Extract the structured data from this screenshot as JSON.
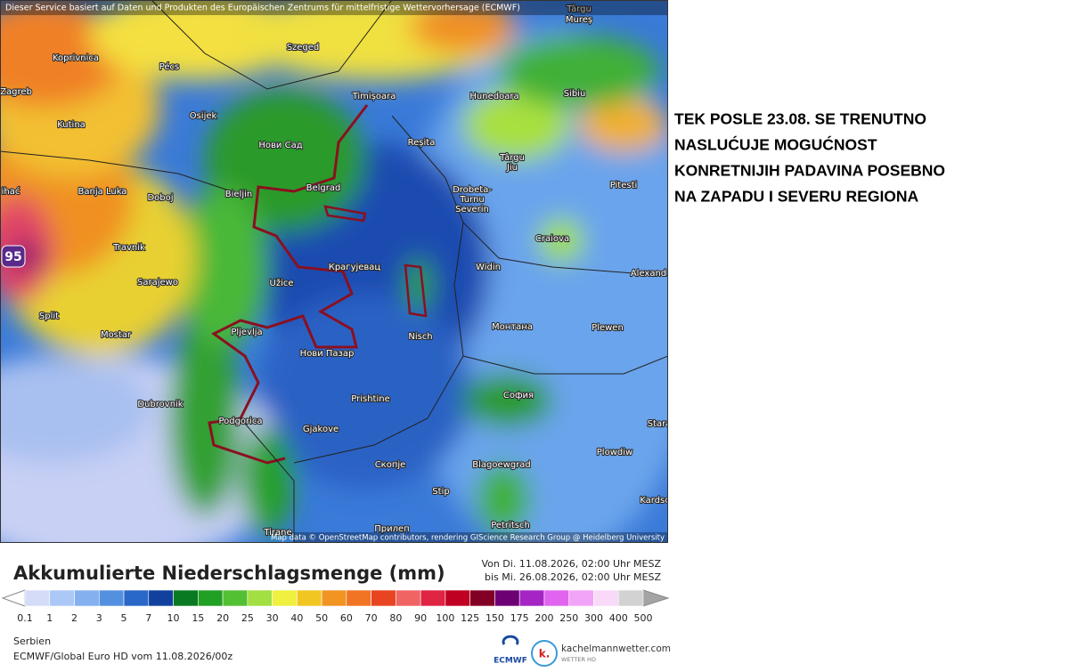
{
  "header": {
    "notice": "Dieser Service basiert auf Daten und Produkten des Europäischen Zentrums für mittelfristige Wettervorhersage (ECMWF)",
    "attribution": "Map data © OpenStreetMap contributors, rendering GIScience Research Group @ Heidelberg University"
  },
  "map": {
    "max_label": "95",
    "places": [
      "Târgu",
      "Mureș",
      "Koprivnica",
      "Pécs",
      "Szeged",
      "Zagreb",
      "Osijek",
      "Timișoara",
      "Hunedoara",
      "Sibiu",
      "Kutina",
      "Нови Сад",
      "Reșita",
      "Târgu",
      "Jiu",
      "Banja Luka",
      "Doboj",
      "Bieljin",
      "Belgrad",
      "Drobeta-",
      "Turnu",
      "Severin",
      "Pitesti",
      "ihać",
      "Craiova",
      "Travnik",
      "Крагујевац",
      "Sarajewo",
      "Užice",
      "Widin",
      "Alexand",
      "Split",
      "Mostar",
      "Pljevlja",
      "Монтана",
      "Nisch",
      "Plewen",
      "Нови Пазар",
      "Dubrovnik",
      "Prishtine",
      "София",
      "Podgorica",
      "Gjakove",
      "Stara",
      "Plowdiw",
      "Скопје",
      "Blagoewgrad",
      "Stip",
      "Kardsc",
      "Прилеп",
      "Petritsch",
      "Tirane"
    ]
  },
  "annotation": {
    "lines": [
      "TEK POSLE 23.08. SE TRENUTNO",
      "NASLUĆUJE MOGUĆNOST",
      "KONRETNIJIH PADAVINA POSEBNO",
      "NA ZAPADU I SEVERU REGIONA"
    ]
  },
  "legend": {
    "title": "Akkumulierte Niederschlagsmenge (mm)",
    "period": [
      "Von Di. 11.08.2026, 02:00 Uhr MESZ",
      "bis Mi. 26.08.2026, 02:00 Uhr MESZ"
    ],
    "ticks": [
      0.1,
      1,
      2,
      3,
      5,
      7,
      10,
      15,
      20,
      25,
      30,
      40,
      50,
      60,
      70,
      80,
      90,
      100,
      125,
      150,
      175,
      200,
      250,
      300,
      400,
      500
    ],
    "colors": [
      "#d4dcf8",
      "#acc8f6",
      "#84b0f0",
      "#5490e0",
      "#2a68c8",
      "#12409e",
      "#0a7a22",
      "#22a024",
      "#52c032",
      "#a2e042",
      "#f0f040",
      "#f2c622",
      "#f29422",
      "#f07424",
      "#e84422",
      "#f06464",
      "#e02444",
      "#c00022",
      "#820024",
      "#6c0074",
      "#a424c4",
      "#e064f0",
      "#f2a4f8",
      "#f8daf8",
      "#d2d2d2"
    ],
    "under_color": "#ffffff",
    "over_color": "#a4a4a4"
  },
  "footer": {
    "region": "Serbien",
    "model": "ECMWF/Global Euro HD vom 11.08.2026/00z"
  },
  "logos": {
    "ecmwf": "ECMWF",
    "site": "kachelmannwetter.com",
    "site_sub": "WETTER HD",
    "site_mark": "k."
  }
}
